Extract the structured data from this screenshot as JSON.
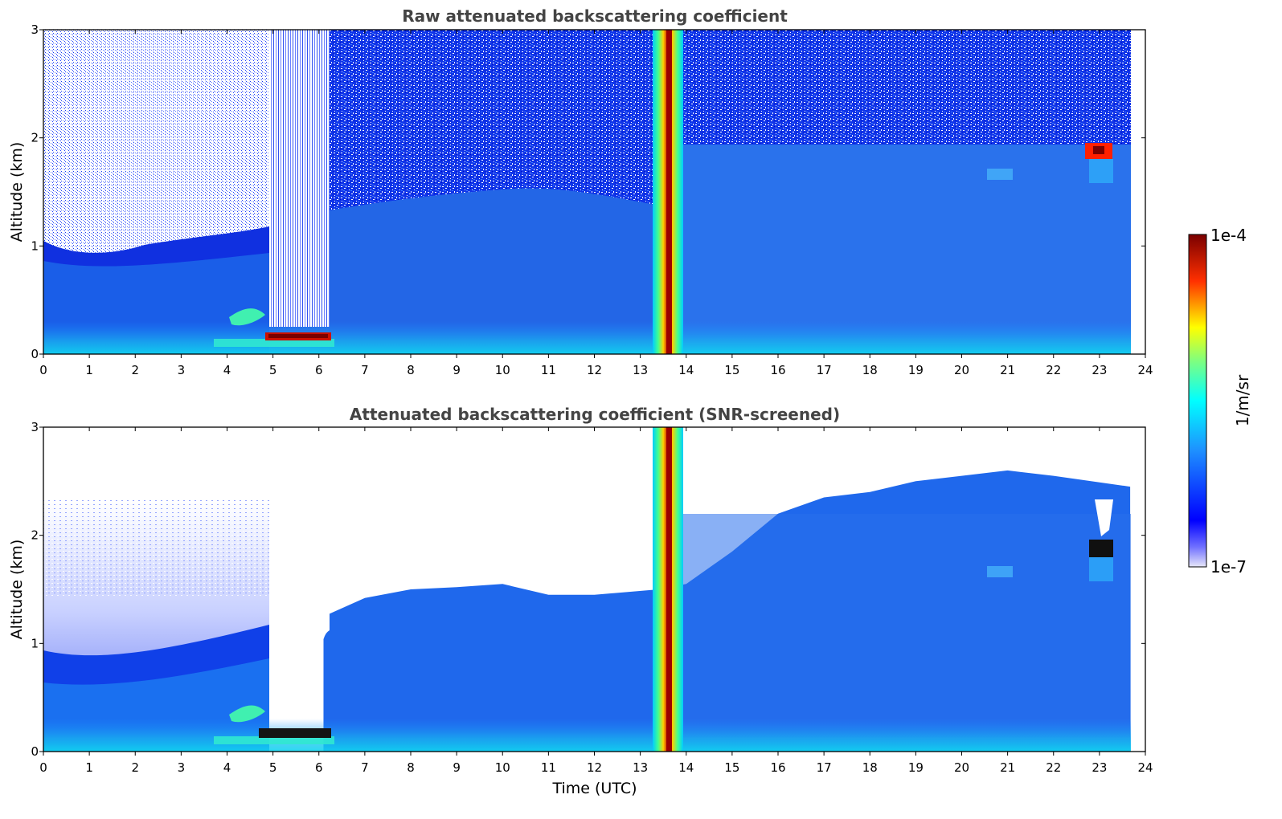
{
  "chart_data": [
    {
      "type": "heatmap",
      "title": "Raw attenuated backscattering coefficient",
      "xlabel": "",
      "ylabel": "Altitude (km)",
      "x_ticks": [
        "0",
        "1",
        "2",
        "3",
        "4",
        "5",
        "6",
        "7",
        "8",
        "9",
        "10",
        "11",
        "12",
        "13",
        "14",
        "15",
        "16",
        "17",
        "18",
        "19",
        "20",
        "21",
        "22",
        "23",
        "24"
      ],
      "y_ticks": [
        "0",
        "1",
        "2",
        "3"
      ],
      "xlim": [
        0,
        24
      ],
      "ylim": [
        0,
        3
      ],
      "grid": false,
      "features": [
        {
          "kind": "noisy_upper_layer",
          "from_hour": 0,
          "to_hour": 23.67,
          "above_km": 1.0
        },
        {
          "kind": "signal_gap",
          "from_hour": 4.85,
          "to_hour": 6.1
        },
        {
          "kind": "strong_column",
          "center_hour": 13.65,
          "from_km": 0,
          "to_km": 3
        },
        {
          "kind": "near_surface_peak",
          "from_hour": 4.9,
          "to_hour": 6.2,
          "altitude_km": 0.17
        },
        {
          "kind": "cloud_spot",
          "center_hour": 23.05,
          "altitude_km": 1.85
        }
      ]
    },
    {
      "type": "heatmap",
      "title": "Attenuated backscattering coefficient (SNR-screened)",
      "xlabel": "Time (UTC)",
      "ylabel": "Altitude (km)",
      "x_ticks": [
        "0",
        "1",
        "2",
        "3",
        "4",
        "5",
        "6",
        "7",
        "8",
        "9",
        "10",
        "11",
        "12",
        "13",
        "14",
        "15",
        "16",
        "17",
        "18",
        "19",
        "20",
        "21",
        "22",
        "23",
        "24"
      ],
      "y_ticks": [
        "0",
        "1",
        "2",
        "3"
      ],
      "xlim": [
        0,
        24
      ],
      "ylim": [
        0,
        3
      ],
      "grid": false,
      "boundary_layer_top_km": [
        {
          "hour": 0,
          "km": 2.3
        },
        {
          "hour": 4.85,
          "km": 2.3
        },
        {
          "hour": 6.1,
          "km": 1.25
        },
        {
          "hour": 7,
          "km": 1.42
        },
        {
          "hour": 8,
          "km": 1.5
        },
        {
          "hour": 9,
          "km": 1.52
        },
        {
          "hour": 10,
          "km": 1.55
        },
        {
          "hour": 11,
          "km": 1.45
        },
        {
          "hour": 12,
          "km": 1.45
        },
        {
          "hour": 13.4,
          "km": 1.5
        },
        {
          "hour": 14,
          "km": 1.55
        },
        {
          "hour": 15,
          "km": 1.85
        },
        {
          "hour": 16,
          "km": 2.2
        },
        {
          "hour": 17,
          "km": 2.35
        },
        {
          "hour": 18,
          "km": 2.4
        },
        {
          "hour": 19,
          "km": 2.5
        },
        {
          "hour": 20,
          "km": 2.55
        },
        {
          "hour": 21,
          "km": 2.6
        },
        {
          "hour": 22,
          "km": 2.55
        },
        {
          "hour": 23.67,
          "km": 2.45
        }
      ],
      "features": [
        {
          "kind": "signal_gap",
          "from_hour": 4.85,
          "to_hour": 6.1
        },
        {
          "kind": "strong_column",
          "center_hour": 13.65,
          "from_km": 0,
          "to_km": 3
        },
        {
          "kind": "near_surface_peak",
          "from_hour": 4.9,
          "to_hour": 6.2,
          "altitude_km": 0.17
        },
        {
          "kind": "cloud_spot",
          "center_hour": 23.05,
          "altitude_km": 1.85
        }
      ]
    }
  ],
  "colorbar": {
    "max_label": "1e-4",
    "min_label": "1e-7",
    "unit_label": "1/m/sr",
    "scale": "log",
    "colormap": "jet",
    "colors": [
      "#e6e6f8",
      "#0000ff",
      "#1e90ff",
      "#00ffff",
      "#ffff00",
      "#ff0000",
      "#800000"
    ]
  },
  "colors": {
    "background_signal": "#2a6ae8",
    "boundary_layer": "#1f7fff",
    "noise": "#1030e0",
    "surface_layer": "#1ec8f0",
    "strong_core": "#cc0000",
    "title_text": "#444444"
  }
}
